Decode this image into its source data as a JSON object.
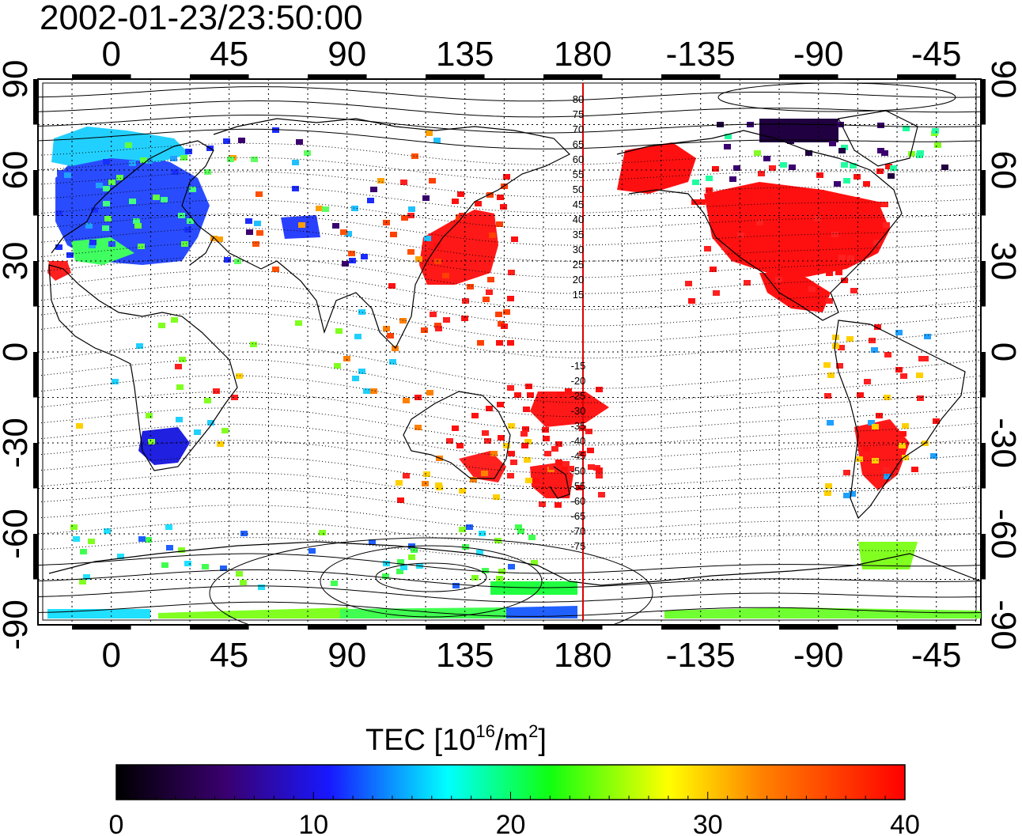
{
  "timestamp": "2002-01-23/23:50:00",
  "map": {
    "top_lon_ticks": [
      "0",
      "45",
      "90",
      "135",
      "180",
      "-135",
      "-90",
      "-45"
    ],
    "bottom_lon_ticks": [
      "0",
      "45",
      "90",
      "135",
      "180",
      "-135",
      "-90",
      "-45"
    ],
    "left_lat_ticks": [
      "90",
      "60",
      "30",
      "0",
      "-30",
      "-60",
      "-90"
    ],
    "right_lat_ticks": [
      "90",
      "60",
      "30",
      "0",
      "-30",
      "-60",
      "-90"
    ],
    "contour_labels_north": [
      "80",
      "75",
      "70",
      "65",
      "60",
      "55",
      "50",
      "45",
      "40",
      "35",
      "30",
      "25",
      "20",
      "15"
    ],
    "contour_labels_south": [
      "-15",
      "-20",
      "-25",
      "-30",
      "-35",
      "-40",
      "-45",
      "-50",
      "-55",
      "-60",
      "-65",
      "-70",
      "-75"
    ],
    "meridian_line_color": "#dd0000",
    "tec_color_regions": [
      {
        "region": "Europe",
        "color": "#2040ff"
      },
      {
        "region": "North America",
        "color": "#ff1010"
      },
      {
        "region": "Japan",
        "color": "#ff1010"
      },
      {
        "region": "Australia / New Zealand",
        "color": "#ff1010"
      },
      {
        "region": "South America",
        "color": "#ff1010"
      },
      {
        "region": "Southern Africa",
        "color": "#2020e0"
      },
      {
        "region": "Antarctica",
        "color": "#20ff40"
      }
    ]
  },
  "colorbar": {
    "title_prefix": "TEC  [10",
    "title_sup1": "16",
    "title_mid": "/m",
    "title_sup2": "2",
    "title_suffix": "]",
    "ticks": [
      "0",
      "10",
      "20",
      "30",
      "40"
    ],
    "min": 0,
    "max": 40,
    "colormap": [
      "#000000",
      "#3a0070",
      "#1818ff",
      "#00ffff",
      "#10ff10",
      "#ffff00",
      "#ff8000",
      "#ff0000"
    ]
  }
}
